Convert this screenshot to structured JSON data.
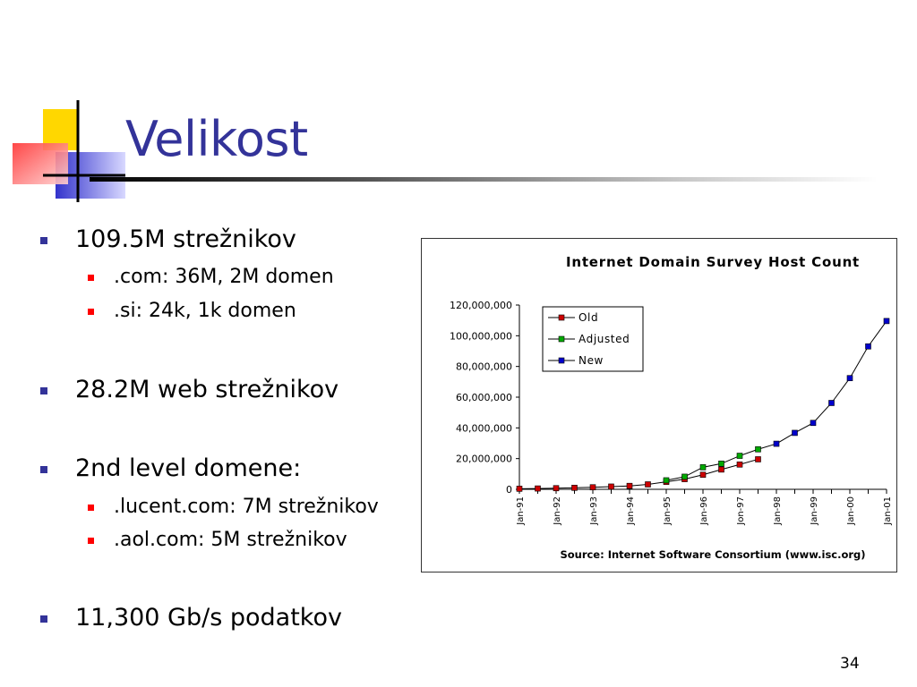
{
  "slide": {
    "title": "Velikost",
    "page_number": "34",
    "bullets": [
      {
        "text": "109.5M strežnikov",
        "sub": [
          ".com: 36M, 2M domen",
          ".si: 24k, 1k domen"
        ]
      },
      {
        "text": "28.2M web strežnikov",
        "sub": []
      },
      {
        "text": "2nd level domene:",
        "sub": [
          ".lucent.com: 7M strežnikov",
          ".aol.com: 5M strežnikov"
        ]
      },
      {
        "text": "11,300 Gb/s podatkov",
        "sub": []
      }
    ]
  },
  "colors": {
    "title": "#333399",
    "bullet_level1": "#333399",
    "bullet_level2": "#ff0000",
    "series_old": "#cc0000",
    "series_adjusted": "#00aa00",
    "series_new": "#0000cc"
  },
  "chart_data": {
    "type": "line",
    "title": "Internet Domain Survey Host Count",
    "source": "Source: Internet Software Consortium (www.isc.org)",
    "legend_position": "top-left",
    "ylim": [
      0,
      120000000
    ],
    "y_ticks": [
      "0",
      "20,000,000",
      "40,000,000",
      "60,000,000",
      "80,000,000",
      "100,000,000",
      "120,000,000"
    ],
    "x_ticks": [
      "Jan-91",
      "Jan-92",
      "Jan-93",
      "Jan-94",
      "Jan-95",
      "Jan-96",
      "Jon-97",
      "Jan-98",
      "Jan-99",
      "Jan-00",
      "Jan-01"
    ],
    "series": [
      {
        "name": "Old",
        "points": [
          [
            1991.0,
            376000
          ],
          [
            1991.5,
            535000
          ],
          [
            1992.0,
            727000
          ],
          [
            1992.5,
            992000
          ],
          [
            1993.0,
            1313000
          ],
          [
            1993.5,
            1776000
          ],
          [
            1994.0,
            2217000
          ],
          [
            1994.5,
            3212000
          ],
          [
            1995.0,
            4852000
          ],
          [
            1995.5,
            6642000
          ],
          [
            1996.0,
            9472000
          ],
          [
            1996.5,
            12881000
          ],
          [
            1997.0,
            16146000
          ],
          [
            1997.5,
            19540000
          ]
        ]
      },
      {
        "name": "Adjusted",
        "points": [
          [
            1995.0,
            5846000
          ],
          [
            1995.5,
            8200000
          ],
          [
            1996.0,
            14352000
          ],
          [
            1996.5,
            16729000
          ],
          [
            1997.0,
            21819000
          ],
          [
            1997.5,
            26053000
          ]
        ]
      },
      {
        "name": "New",
        "points": [
          [
            1998.0,
            29670000
          ],
          [
            1998.5,
            36739000
          ],
          [
            1999.0,
            43230000
          ],
          [
            1999.5,
            56218000
          ],
          [
            2000.0,
            72398000
          ],
          [
            2000.5,
            93047000
          ],
          [
            2001.0,
            109574000
          ]
        ]
      }
    ]
  }
}
